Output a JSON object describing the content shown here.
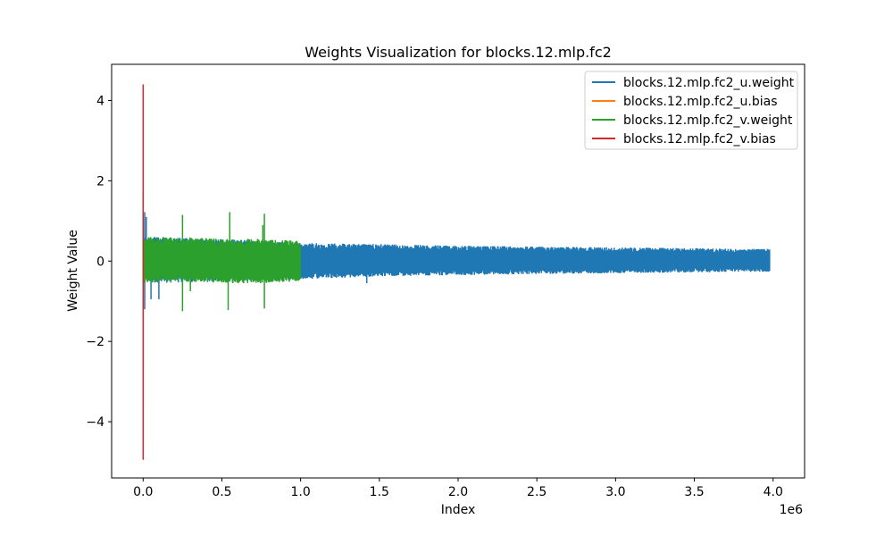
{
  "chart_data": {
    "type": "line",
    "title": "Weights Visualization for blocks.12.mlp.fc2",
    "xlabel": "Index",
    "ylabel": "Weight Value",
    "x_offset_label": "1e6",
    "xlim": [
      -0.2,
      4.2
    ],
    "ylim": [
      -5.4,
      4.9
    ],
    "x_ticks": [
      {
        "value": 0.0,
        "label": "0.0"
      },
      {
        "value": 0.5,
        "label": "0.5"
      },
      {
        "value": 1.0,
        "label": "1.0"
      },
      {
        "value": 1.5,
        "label": "1.5"
      },
      {
        "value": 2.0,
        "label": "2.0"
      },
      {
        "value": 2.5,
        "label": "2.5"
      },
      {
        "value": 3.0,
        "label": "3.0"
      },
      {
        "value": 3.5,
        "label": "3.5"
      },
      {
        "value": 4.0,
        "label": "4.0"
      }
    ],
    "y_ticks": [
      {
        "value": 4,
        "label": "4"
      },
      {
        "value": 2,
        "label": "2"
      },
      {
        "value": 0,
        "label": "0"
      },
      {
        "value": -2,
        "label": "−2"
      },
      {
        "value": -4,
        "label": "−4"
      }
    ],
    "grid": false,
    "legend_position": "top-right",
    "series": [
      {
        "name": "blocks.12.mlp.fc2_u.weight",
        "color": "#1f77b4",
        "x_range": [
          0,
          3.98
        ],
        "band": [
          [
            0,
            -0.55,
            0.6
          ],
          [
            0.05,
            -0.55,
            0.6
          ],
          [
            0.5,
            -0.5,
            0.55
          ],
          [
            1.0,
            -0.45,
            0.45
          ],
          [
            1.5,
            -0.38,
            0.42
          ],
          [
            2.0,
            -0.35,
            0.38
          ],
          [
            2.5,
            -0.32,
            0.36
          ],
          [
            3.0,
            -0.3,
            0.34
          ],
          [
            3.5,
            -0.28,
            0.32
          ],
          [
            3.98,
            -0.26,
            0.3
          ]
        ],
        "spikes": [
          [
            0.01,
            1.22
          ],
          [
            0.01,
            -1.2
          ],
          [
            0.02,
            1.1
          ],
          [
            0.05,
            -0.95
          ],
          [
            0.1,
            -0.95
          ],
          [
            1.42,
            -0.55
          ]
        ]
      },
      {
        "name": "blocks.12.mlp.fc2_u.bias",
        "color": "#ff7f0e",
        "x_range": [
          0,
          0.001
        ],
        "band": [
          [
            0,
            -0.3,
            0.3
          ],
          [
            0.001,
            -0.3,
            0.3
          ]
        ],
        "spikes": []
      },
      {
        "name": "blocks.12.mlp.fc2_v.weight",
        "color": "#2ca02c",
        "x_range": [
          0,
          1.0
        ],
        "band": [
          [
            0,
            -0.55,
            0.6
          ],
          [
            0.25,
            -0.5,
            0.6
          ],
          [
            0.5,
            -0.55,
            0.55
          ],
          [
            0.75,
            -0.55,
            0.55
          ],
          [
            1.0,
            -0.5,
            0.5
          ]
        ],
        "spikes": [
          [
            0.25,
            1.15
          ],
          [
            0.25,
            -1.25
          ],
          [
            0.3,
            -0.75
          ],
          [
            0.55,
            1.22
          ],
          [
            0.54,
            -1.22
          ],
          [
            0.77,
            1.18
          ],
          [
            0.77,
            -1.18
          ],
          [
            0.76,
            0.9
          ],
          [
            0.0,
            1.7
          ]
        ]
      },
      {
        "name": "blocks.12.mlp.fc2_v.bias",
        "color": "#d62728",
        "x_range": [
          0,
          0.001
        ],
        "band": [],
        "points": [
          [
            0.0,
            0.0
          ],
          [
            0.0,
            4.4
          ],
          [
            0.0,
            -4.95
          ],
          [
            0.001,
            0.0
          ]
        ],
        "spikes": []
      }
    ]
  }
}
